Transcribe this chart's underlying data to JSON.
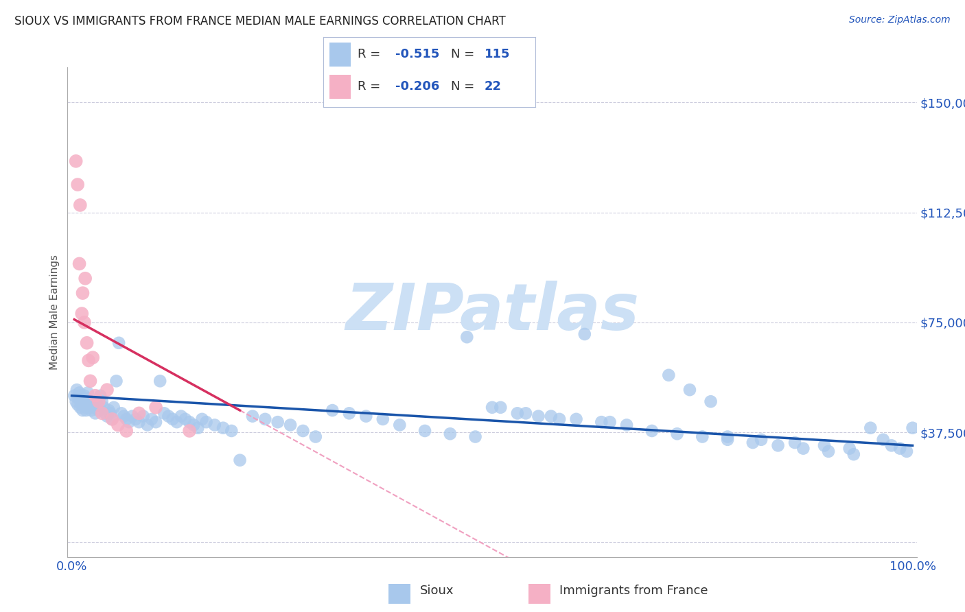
{
  "title": "SIOUX VS IMMIGRANTS FROM FRANCE MEDIAN MALE EARNINGS CORRELATION CHART",
  "source": "Source: ZipAtlas.com",
  "ylabel": "Median Male Earnings",
  "yticks": [
    0,
    37500,
    75000,
    112500,
    150000
  ],
  "ylim": [
    -5000,
    162000
  ],
  "xlim": [
    -0.005,
    1.005
  ],
  "sioux_R": "-0.515",
  "sioux_N": "115",
  "france_R": "-0.206",
  "france_N": "22",
  "sioux_color": "#a8c8ec",
  "france_color": "#f5b0c5",
  "sioux_line_color": "#1a55aa",
  "france_line_solid_color": "#d63060",
  "france_line_dash_color": "#f0a0c0",
  "watermark_color": "#cce0f5",
  "title_color": "#222222",
  "axis_label_color": "#555555",
  "tick_label_color": "#2255bb",
  "grid_color": "#ccccdd",
  "background_color": "#ffffff",
  "legend_border_color": "#b0bcd8",
  "sioux_x": [
    0.003,
    0.005,
    0.006,
    0.007,
    0.008,
    0.009,
    0.01,
    0.01,
    0.011,
    0.012,
    0.013,
    0.014,
    0.015,
    0.016,
    0.016,
    0.017,
    0.018,
    0.019,
    0.02,
    0.021,
    0.022,
    0.023,
    0.025,
    0.026,
    0.028,
    0.03,
    0.032,
    0.034,
    0.036,
    0.038,
    0.04,
    0.042,
    0.044,
    0.046,
    0.048,
    0.05,
    0.053,
    0.056,
    0.059,
    0.062,
    0.065,
    0.068,
    0.072,
    0.076,
    0.08,
    0.085,
    0.09,
    0.095,
    0.1,
    0.105,
    0.11,
    0.115,
    0.12,
    0.125,
    0.13,
    0.135,
    0.14,
    0.145,
    0.15,
    0.155,
    0.16,
    0.17,
    0.18,
    0.19,
    0.2,
    0.215,
    0.23,
    0.245,
    0.26,
    0.275,
    0.29,
    0.31,
    0.33,
    0.35,
    0.37,
    0.39,
    0.42,
    0.45,
    0.48,
    0.51,
    0.54,
    0.57,
    0.6,
    0.63,
    0.66,
    0.69,
    0.72,
    0.75,
    0.78,
    0.81,
    0.84,
    0.87,
    0.9,
    0.93,
    0.95,
    0.965,
    0.975,
    0.985,
    0.993,
    1.0,
    0.47,
    0.61,
    0.71,
    0.735,
    0.76,
    0.5,
    0.53,
    0.555,
    0.58,
    0.64,
    0.78,
    0.82,
    0.86,
    0.895,
    0.925
  ],
  "sioux_y": [
    50000,
    48000,
    52000,
    47000,
    49000,
    51000,
    46000,
    50000,
    48000,
    47000,
    45000,
    49000,
    50000,
    48000,
    46000,
    45000,
    49000,
    51000,
    47000,
    46000,
    48000,
    45000,
    47000,
    46000,
    44000,
    47000,
    45000,
    50000,
    48000,
    46000,
    44000,
    43000,
    45000,
    44000,
    42000,
    46000,
    55000,
    68000,
    44000,
    43000,
    42000,
    41000,
    43000,
    42000,
    41000,
    43000,
    40000,
    42000,
    41000,
    55000,
    44000,
    43000,
    42000,
    41000,
    43000,
    42000,
    41000,
    40000,
    39000,
    42000,
    41000,
    40000,
    39000,
    38000,
    28000,
    43000,
    42000,
    41000,
    40000,
    38000,
    36000,
    45000,
    44000,
    43000,
    42000,
    40000,
    38000,
    37000,
    36000,
    46000,
    44000,
    43000,
    42000,
    41000,
    40000,
    38000,
    37000,
    36000,
    35000,
    34000,
    33000,
    32000,
    31000,
    30000,
    39000,
    35000,
    33000,
    32000,
    31000,
    39000,
    70000,
    71000,
    57000,
    52000,
    48000,
    46000,
    44000,
    43000,
    42000,
    41000,
    36000,
    35000,
    34000,
    33000,
    32000
  ],
  "france_x": [
    0.005,
    0.007,
    0.009,
    0.01,
    0.012,
    0.013,
    0.015,
    0.016,
    0.018,
    0.02,
    0.022,
    0.025,
    0.028,
    0.032,
    0.036,
    0.042,
    0.048,
    0.055,
    0.065,
    0.08,
    0.1,
    0.14
  ],
  "france_y": [
    130000,
    122000,
    95000,
    115000,
    78000,
    85000,
    75000,
    90000,
    68000,
    62000,
    55000,
    63000,
    50000,
    48000,
    44000,
    52000,
    42000,
    40000,
    38000,
    44000,
    46000,
    38000
  ]
}
